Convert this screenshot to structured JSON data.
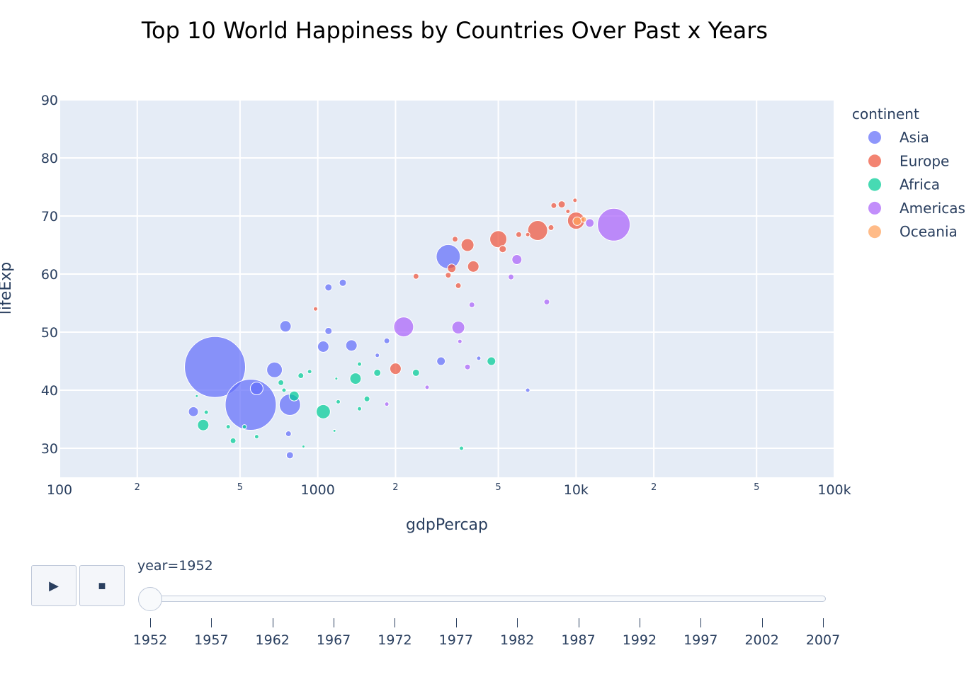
{
  "chart_data": {
    "type": "scatter",
    "title": "Top 10 World Happiness by Countries Over Past x Years",
    "xlabel": "gdpPercap",
    "ylabel": "lifeExp",
    "x_scale": "log",
    "xlim": [
      100,
      100000
    ],
    "ylim": [
      25,
      90
    ],
    "x_ticks": [
      "100",
      "1000",
      "10k",
      "100k"
    ],
    "x_tick_values": [
      100,
      1000,
      10000,
      100000
    ],
    "x_minor_ticks": [
      "2",
      "5",
      "2",
      "5",
      "2",
      "5"
    ],
    "x_minor_tick_values": [
      200,
      500,
      2000,
      5000,
      20000,
      50000
    ],
    "y_ticks": [
      "30",
      "40",
      "50",
      "60",
      "70",
      "80",
      "90"
    ],
    "y_tick_values": [
      30,
      40,
      50,
      60,
      70,
      80,
      90
    ],
    "grid": true,
    "legend": {
      "title": "continent",
      "position": "right",
      "items": [
        {
          "name": "Asia",
          "color": "#636efa"
        },
        {
          "name": "Europe",
          "color": "#ef553b"
        },
        {
          "name": "Africa",
          "color": "#00cc96"
        },
        {
          "name": "Americas",
          "color": "#ab63fa"
        },
        {
          "name": "Oceania",
          "color": "#ffa15a"
        }
      ]
    },
    "bubble_size": "pop",
    "series": [
      {
        "name": "Asia",
        "points": [
          {
            "x": 400,
            "y": 44,
            "r": 43
          },
          {
            "x": 550,
            "y": 37.5,
            "r": 36
          },
          {
            "x": 3200,
            "y": 63,
            "r": 17
          },
          {
            "x": 780,
            "y": 37.5,
            "r": 15
          },
          {
            "x": 680,
            "y": 43.5,
            "r": 11
          },
          {
            "x": 580,
            "y": 40.3,
            "r": 9
          },
          {
            "x": 750,
            "y": 51,
            "r": 8
          },
          {
            "x": 1350,
            "y": 47.7,
            "r": 8
          },
          {
            "x": 1050,
            "y": 47.5,
            "r": 8
          },
          {
            "x": 330,
            "y": 36.3,
            "r": 7
          },
          {
            "x": 3000,
            "y": 45,
            "r": 6
          },
          {
            "x": 1100,
            "y": 57.7,
            "r": 5
          },
          {
            "x": 1250,
            "y": 58.5,
            "r": 5
          },
          {
            "x": 1100,
            "y": 50.2,
            "r": 5
          },
          {
            "x": 770,
            "y": 32.5,
            "r": 4
          },
          {
            "x": 780,
            "y": 28.8,
            "r": 5
          },
          {
            "x": 1850,
            "y": 48.5,
            "r": 4
          },
          {
            "x": 6500,
            "y": 40,
            "r": 3
          },
          {
            "x": 4200,
            "y": 45.5,
            "r": 3
          },
          {
            "x": 1700,
            "y": 46,
            "r": 3
          }
        ]
      },
      {
        "name": "Europe",
        "points": [
          {
            "x": 7100,
            "y": 67.5,
            "r": 14
          },
          {
            "x": 10000,
            "y": 69.2,
            "r": 12
          },
          {
            "x": 5000,
            "y": 66,
            "r": 12
          },
          {
            "x": 3800,
            "y": 65,
            "r": 9
          },
          {
            "x": 4000,
            "y": 61.3,
            "r": 8
          },
          {
            "x": 2000,
            "y": 43.7,
            "r": 8
          },
          {
            "x": 3300,
            "y": 61,
            "r": 6
          },
          {
            "x": 8800,
            "y": 72,
            "r": 5
          },
          {
            "x": 8200,
            "y": 71.8,
            "r": 4
          },
          {
            "x": 8000,
            "y": 68,
            "r": 4
          },
          {
            "x": 5200,
            "y": 64.3,
            "r": 5
          },
          {
            "x": 6000,
            "y": 66.8,
            "r": 4
          },
          {
            "x": 3400,
            "y": 66,
            "r": 4
          },
          {
            "x": 3200,
            "y": 59.8,
            "r": 4
          },
          {
            "x": 2400,
            "y": 59.6,
            "r": 4
          },
          {
            "x": 3500,
            "y": 58,
            "r": 4
          },
          {
            "x": 9900,
            "y": 72.7,
            "r": 3
          },
          {
            "x": 6500,
            "y": 66.8,
            "r": 3
          },
          {
            "x": 980,
            "y": 54,
            "r": 3
          },
          {
            "x": 9300,
            "y": 70.8,
            "r": 3
          }
        ]
      },
      {
        "name": "Africa",
        "points": [
          {
            "x": 1050,
            "y": 36.3,
            "r": 10
          },
          {
            "x": 1400,
            "y": 42,
            "r": 8
          },
          {
            "x": 360,
            "y": 34,
            "r": 8
          },
          {
            "x": 4700,
            "y": 45,
            "r": 6
          },
          {
            "x": 810,
            "y": 39,
            "r": 7
          },
          {
            "x": 1700,
            "y": 43,
            "r": 5
          },
          {
            "x": 2400,
            "y": 43,
            "r": 5
          },
          {
            "x": 1550,
            "y": 38.5,
            "r": 4
          },
          {
            "x": 720,
            "y": 41.3,
            "r": 4
          },
          {
            "x": 860,
            "y": 42.5,
            "r": 4
          },
          {
            "x": 930,
            "y": 43.2,
            "r": 3
          },
          {
            "x": 470,
            "y": 31.3,
            "r": 4
          },
          {
            "x": 580,
            "y": 32,
            "r": 3
          },
          {
            "x": 3600,
            "y": 30,
            "r": 3
          },
          {
            "x": 520,
            "y": 33.7,
            "r": 3
          },
          {
            "x": 450,
            "y": 33.7,
            "r": 3
          },
          {
            "x": 1450,
            "y": 36.8,
            "r": 3
          },
          {
            "x": 1200,
            "y": 38,
            "r": 3
          },
          {
            "x": 740,
            "y": 40,
            "r": 3
          },
          {
            "x": 1450,
            "y": 44.5,
            "r": 3
          },
          {
            "x": 1180,
            "y": 42,
            "r": 2
          },
          {
            "x": 1160,
            "y": 33,
            "r": 2
          },
          {
            "x": 880,
            "y": 30.3,
            "r": 2
          },
          {
            "x": 340,
            "y": 39,
            "r": 2
          },
          {
            "x": 370,
            "y": 36.2,
            "r": 3
          }
        ]
      },
      {
        "name": "Americas",
        "points": [
          {
            "x": 14000,
            "y": 68.5,
            "r": 23
          },
          {
            "x": 2150,
            "y": 50.9,
            "r": 14
          },
          {
            "x": 3500,
            "y": 50.8,
            "r": 9
          },
          {
            "x": 5900,
            "y": 62.5,
            "r": 7
          },
          {
            "x": 11300,
            "y": 68.8,
            "r": 6
          },
          {
            "x": 3800,
            "y": 44,
            "r": 4
          },
          {
            "x": 5600,
            "y": 59.5,
            "r": 4
          },
          {
            "x": 7700,
            "y": 55.2,
            "r": 4
          },
          {
            "x": 3950,
            "y": 54.7,
            "r": 4
          },
          {
            "x": 3550,
            "y": 48.4,
            "r": 3
          },
          {
            "x": 2650,
            "y": 40.5,
            "r": 3
          },
          {
            "x": 1850,
            "y": 37.6,
            "r": 3
          }
        ]
      },
      {
        "name": "Oceania",
        "points": [
          {
            "x": 10100,
            "y": 69.1,
            "r": 6
          },
          {
            "x": 10700,
            "y": 69.4,
            "r": 4
          }
        ]
      }
    ]
  },
  "controls": {
    "play_label": "▶",
    "stop_label": "■",
    "slider_label": "year=1952",
    "slider_value": "1952",
    "years": [
      "1952",
      "1957",
      "1962",
      "1967",
      "1972",
      "1977",
      "1982",
      "1987",
      "1992",
      "1997",
      "2002",
      "2007"
    ]
  }
}
